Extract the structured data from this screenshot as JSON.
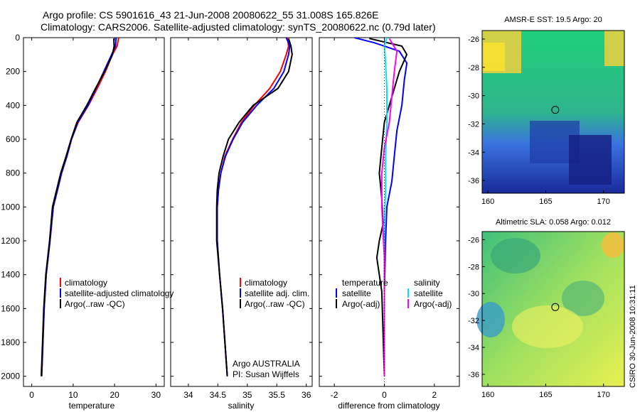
{
  "header": {
    "line1": "Argo profile: CS 5901616_43 21-Jun-2008 20080622_55 31.008S 165.826E",
    "line2": "Climatology: CARS2006. Satellite-adjusted climatology: synTS_20080622.nc (0.79d later)"
  },
  "colors": {
    "climatology": "#ff0000",
    "satellite": "#0000ff",
    "argo": "#000000",
    "sal_satellite": "#00e0ff",
    "sal_argo": "#ff00ff"
  },
  "chart_data": [
    {
      "type": "line",
      "xlabel": "temperature",
      "xlim": [
        -2,
        32
      ],
      "ylim": [
        0,
        2060
      ],
      "yreversed": true,
      "xticks": [
        "0",
        "10",
        "20",
        "30"
      ],
      "yticks": [
        "0",
        "200",
        "400",
        "600",
        "800",
        "1000",
        "1200",
        "1400",
        "1600",
        "1800",
        "2000"
      ],
      "legend": [
        "climatology",
        "satellite-adjusted climatology",
        "Argo(..raw -QC)"
      ],
      "series": [
        {
          "name": "climatology",
          "color": "climatology",
          "x": [
            21.0,
            20.6,
            19.5,
            17.8,
            15.8,
            13.7,
            11.2,
            9.6,
            8.5,
            7.2,
            6.2,
            5.2,
            4.4,
            3.5,
            3.0,
            2.7,
            2.4
          ],
          "y": [
            0,
            50,
            100,
            200,
            300,
            400,
            500,
            600,
            700,
            800,
            900,
            1000,
            1200,
            1400,
            1600,
            1800,
            2000
          ]
        },
        {
          "name": "satellite-adjusted climatology",
          "color": "satellite",
          "x": [
            20.4,
            20.2,
            19.3,
            17.4,
            15.5,
            13.6,
            11.1,
            9.6,
            8.5,
            7.2,
            6.2,
            5.2,
            4.4,
            3.5,
            3.0,
            2.7,
            2.4
          ],
          "y": [
            0,
            50,
            100,
            200,
            300,
            400,
            500,
            600,
            700,
            800,
            900,
            1000,
            1200,
            1400,
            1600,
            1800,
            2000
          ]
        },
        {
          "name": "Argo(..raw -QC)",
          "color": "argo",
          "x": [
            19.8,
            19.9,
            19.5,
            17.6,
            15.4,
            13.3,
            10.9,
            9.5,
            8.3,
            7.0,
            6.0,
            5.0,
            4.3,
            3.4,
            2.9,
            2.6,
            2.3
          ],
          "y": [
            5,
            50,
            100,
            200,
            300,
            400,
            500,
            600,
            700,
            800,
            900,
            1000,
            1200,
            1400,
            1600,
            1800,
            2000
          ]
        }
      ]
    },
    {
      "type": "line",
      "xlabel": "salinity",
      "xlim": [
        33.7,
        36.1
      ],
      "ylim": [
        0,
        2060
      ],
      "yreversed": true,
      "xticks": [
        "34",
        "34.5",
        "35",
        "35.5",
        "36"
      ],
      "legend": [
        "climatology",
        "satellite adj. clim.",
        "Argo(..raw -QC)"
      ],
      "annotation": [
        "Argo AUSTRALIA",
        "PI: Susan Wijffels"
      ],
      "series": [
        {
          "name": "climatology",
          "color": "climatology",
          "x": [
            35.68,
            35.7,
            35.66,
            35.56,
            35.38,
            35.12,
            34.9,
            34.75,
            34.62,
            34.55,
            34.51,
            34.49,
            34.49,
            34.53,
            34.58,
            34.62,
            34.66
          ],
          "y": [
            0,
            50,
            100,
            200,
            300,
            400,
            500,
            600,
            700,
            800,
            900,
            1000,
            1200,
            1400,
            1600,
            1800,
            2000
          ]
        },
        {
          "name": "satellite adj. clim.",
          "color": "satellite",
          "x": [
            35.66,
            35.72,
            35.7,
            35.62,
            35.45,
            35.16,
            34.92,
            34.76,
            34.63,
            34.55,
            34.51,
            34.49,
            34.49,
            34.53,
            34.58,
            34.62,
            34.66
          ],
          "y": [
            0,
            50,
            100,
            200,
            300,
            400,
            500,
            600,
            700,
            800,
            900,
            1000,
            1200,
            1400,
            1600,
            1800,
            2000
          ]
        },
        {
          "name": "Argo(..raw -QC)",
          "color": "argo",
          "x": [
            35.7,
            35.74,
            35.76,
            35.7,
            35.52,
            35.1,
            34.86,
            34.68,
            34.59,
            34.52,
            34.49,
            34.48,
            34.48,
            34.53,
            34.58,
            34.62,
            34.66
          ],
          "y": [
            5,
            50,
            100,
            200,
            300,
            400,
            500,
            600,
            700,
            800,
            900,
            1000,
            1200,
            1400,
            1600,
            1800,
            2000
          ]
        }
      ]
    },
    {
      "type": "line",
      "xlabel": "difference from climatology",
      "xlim": [
        -2.6,
        3.0
      ],
      "ylim": [
        0,
        2060
      ],
      "yreversed": true,
      "xticks": [
        "-2",
        "0",
        "2"
      ],
      "legend_left": [
        "temperature",
        "satellite",
        "Argo(-adj)"
      ],
      "legend_right": [
        "salinity",
        "satellite",
        "Argo(-adj)"
      ],
      "series": [
        {
          "name": "temperature satellite",
          "color": "satellite",
          "x": [
            -1.2,
            -0.4,
            0.6,
            0.9,
            0.8,
            0.7,
            0.5,
            0.4,
            0.3,
            0.1,
            0.05,
            0.0,
            0.0,
            0.0
          ],
          "y": [
            0,
            30,
            80,
            150,
            250,
            400,
            550,
            700,
            850,
            1000,
            1200,
            1500,
            1800,
            2000
          ]
        },
        {
          "name": "temperature Argo(-adj)",
          "color": "argo",
          "x": [
            -0.6,
            0.7,
            0.9,
            0.6,
            0.3,
            0.0,
            -0.1,
            -0.2,
            -0.1,
            -0.05,
            -0.2,
            -0.3,
            -0.1,
            0.0
          ],
          "y": [
            5,
            50,
            100,
            200,
            350,
            500,
            650,
            800,
            950,
            1100,
            1200,
            1300,
            1500,
            2000
          ]
        },
        {
          "name": "salinity satellite",
          "color": "sal_satellite",
          "x": [
            0.1,
            0.0,
            0.05,
            0.1,
            0.1,
            0.05,
            0.05,
            0.0,
            0.0,
            0.0,
            0.0
          ],
          "y": [
            0,
            50,
            150,
            300,
            500,
            700,
            900,
            1100,
            1400,
            1700,
            2000
          ]
        },
        {
          "name": "salinity Argo(-adj)",
          "color": "sal_argo",
          "x": [
            0.2,
            0.5,
            0.4,
            0.3,
            0.2,
            0.0,
            -0.1,
            -0.1,
            0.0,
            0.0,
            0.0
          ],
          "y": [
            5,
            80,
            200,
            350,
            500,
            650,
            800,
            1000,
            1300,
            1600,
            2000
          ]
        }
      ]
    },
    {
      "type": "heatmap",
      "title": "AMSR-E SST: 19.5 Argo: 20",
      "xticks": [
        "160",
        "165",
        "170"
      ],
      "yticks": [
        "-26",
        "-28",
        "-30",
        "-32",
        "-34",
        "-36"
      ],
      "xlim": [
        159.5,
        171.8
      ],
      "ylim": [
        -36.9,
        -25.4
      ],
      "marker": {
        "lon": 165.826,
        "lat": -31.008
      }
    },
    {
      "type": "heatmap",
      "title": "Altimetric SLA: 0.058 Argo: 0.012",
      "xticks": [
        "160",
        "165",
        "170"
      ],
      "yticks": [
        "-26",
        "-28",
        "-30",
        "-32",
        "-34",
        "-36"
      ],
      "xlim": [
        159.5,
        171.8
      ],
      "ylim": [
        -36.9,
        -25.4
      ],
      "marker": {
        "lon": 165.826,
        "lat": -31.008
      }
    }
  ],
  "credit": "CSIRO 30-Jun-2008 10:31:11"
}
